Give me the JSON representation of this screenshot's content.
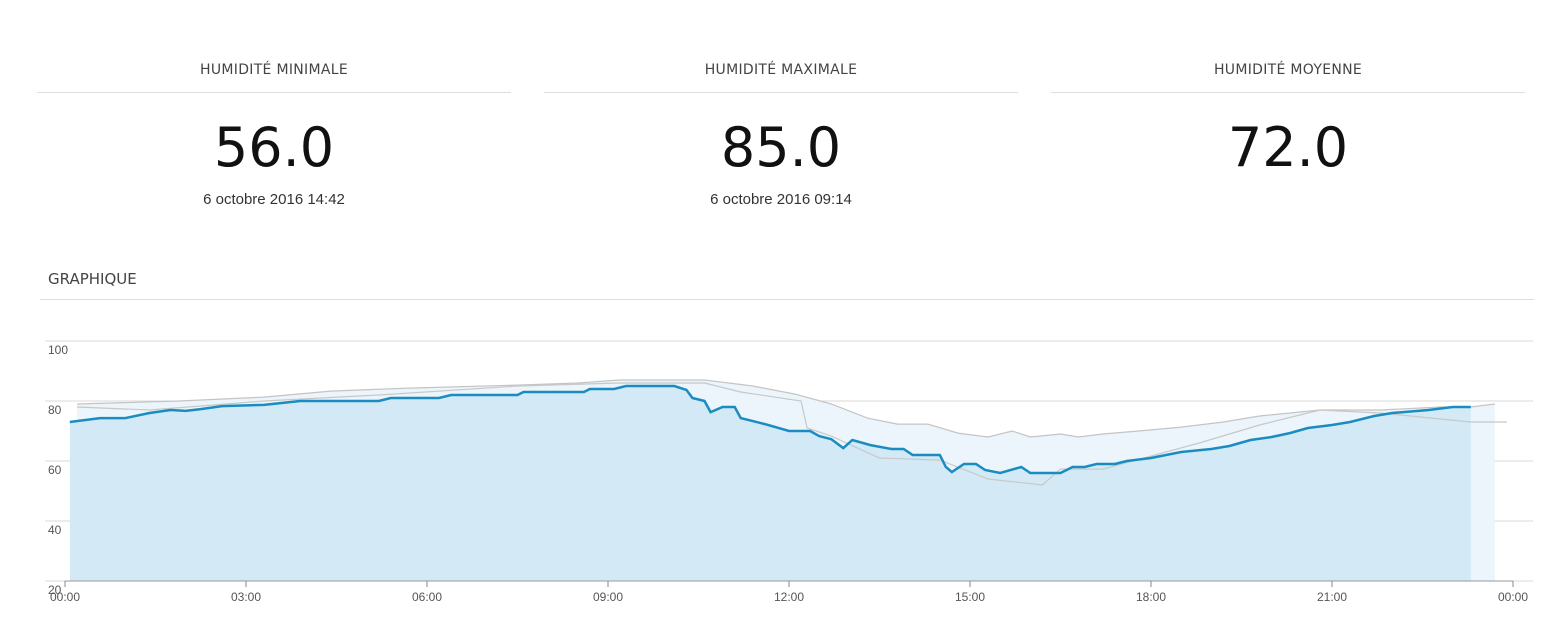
{
  "stats": [
    {
      "title": "HUMIDITÉ MINIMALE",
      "value": "56.0",
      "date": "6 octobre 2016 14:42"
    },
    {
      "title": "HUMIDITÉ MAXIMALE",
      "value": "85.0",
      "date": "6 octobre 2016 09:14"
    },
    {
      "title": "HUMIDITÉ MOYENNE",
      "value": "72.0"
    }
  ],
  "chart_data": {
    "type": "line",
    "title": "GRAPHIQUE",
    "xlim": [
      0,
      24
    ],
    "ylim": [
      20,
      100
    ],
    "xticks": [
      {
        "value": 0,
        "label": "00:00"
      },
      {
        "value": 3,
        "label": "03:00"
      },
      {
        "value": 6,
        "label": "06:00"
      },
      {
        "value": 9,
        "label": "09:00"
      },
      {
        "value": 12,
        "label": "12:00"
      },
      {
        "value": 15,
        "label": "15:00"
      },
      {
        "value": 18,
        "label": "18:00"
      },
      {
        "value": 21,
        "label": "21:00"
      },
      {
        "value": 24,
        "label": "00:00"
      }
    ],
    "yticks": [
      20,
      40,
      60,
      80,
      100
    ],
    "grid": true,
    "series": [
      {
        "color": "#c4c4c4",
        "area_color": "#ebf5fb",
        "x": [
          0.2,
          1.9,
          3.3,
          4.4,
          5.7,
          7.5,
          8.5,
          9.2,
          10.6,
          11.4,
          12.1,
          12.7,
          13.3,
          13.8,
          14.3,
          14.8,
          15.3,
          15.7,
          16.0,
          16.5,
          16.8,
          17.2,
          17.8,
          18.5,
          19.2,
          19.8,
          20.8,
          21.8,
          22.8,
          23.3,
          23.7
        ],
        "values": [
          79,
          80,
          81.3,
          83.3,
          84.3,
          85.3,
          86,
          87,
          87,
          85,
          82.3,
          79,
          74.3,
          72.3,
          72.3,
          69.3,
          68,
          70,
          68,
          69,
          68,
          69,
          70,
          71.3,
          73,
          75,
          77,
          77,
          78,
          78,
          79
        ]
      },
      {
        "color": "#c8c8c8",
        "x": [
          0.2,
          1.4,
          3.3,
          5.2,
          7.5,
          9.2,
          10.6,
          11.2,
          12.2,
          12.3,
          12.7,
          13.5,
          14.5,
          15.3,
          16.2,
          16.5,
          17.2,
          18.8,
          19.8,
          20.8,
          21.8,
          22.8,
          23.3,
          23.9
        ],
        "values": [
          78,
          77,
          80,
          82,
          85,
          86,
          86,
          83,
          80,
          71,
          68.3,
          61,
          60.3,
          54,
          52,
          57.3,
          57.3,
          66,
          72,
          77,
          76,
          74,
          73,
          73
        ]
      },
      {
        "color": "#1a8cc0",
        "area_color": "#d3eaf6",
        "x": [
          0.08,
          0.58,
          1.0,
          1.4,
          1.75,
          2.0,
          2.25,
          2.6,
          3.3,
          3.9,
          5.2,
          5.4,
          6.2,
          6.4,
          7.5,
          7.6,
          8.6,
          8.7,
          9.1,
          9.3,
          10.1,
          10.3,
          10.4,
          10.6,
          10.7,
          10.9,
          11.1,
          11.2,
          11.6,
          12.0,
          12.35,
          12.5,
          12.7,
          12.9,
          13.05,
          13.35,
          13.7,
          13.9,
          14.05,
          14.5,
          14.6,
          14.7,
          14.9,
          15.1,
          15.25,
          15.5,
          15.85,
          16.0,
          16.5,
          16.7,
          16.9,
          17.1,
          17.4,
          17.6,
          18.0,
          18.5,
          19.0,
          19.3,
          19.65,
          20.0,
          20.3,
          20.6,
          21.0,
          21.3,
          21.7,
          22.0,
          22.6,
          23.0,
          23.3
        ],
        "values": [
          73,
          74.3,
          74.3,
          76,
          77,
          76.7,
          77.3,
          78.3,
          78.7,
          80,
          80,
          81,
          81,
          82,
          82,
          83,
          83,
          84,
          84,
          85,
          85,
          83.7,
          81,
          80,
          76.3,
          78,
          78,
          74.3,
          72.3,
          70,
          70,
          68.3,
          67.3,
          64.3,
          67,
          65.3,
          64,
          64,
          62,
          62,
          58,
          56.3,
          59,
          59,
          57,
          56,
          58,
          56,
          56,
          58,
          58,
          59,
          59,
          60,
          61,
          63,
          64,
          65,
          67,
          68,
          69.3,
          71,
          72,
          73,
          75,
          76,
          77,
          78,
          78
        ]
      }
    ]
  }
}
